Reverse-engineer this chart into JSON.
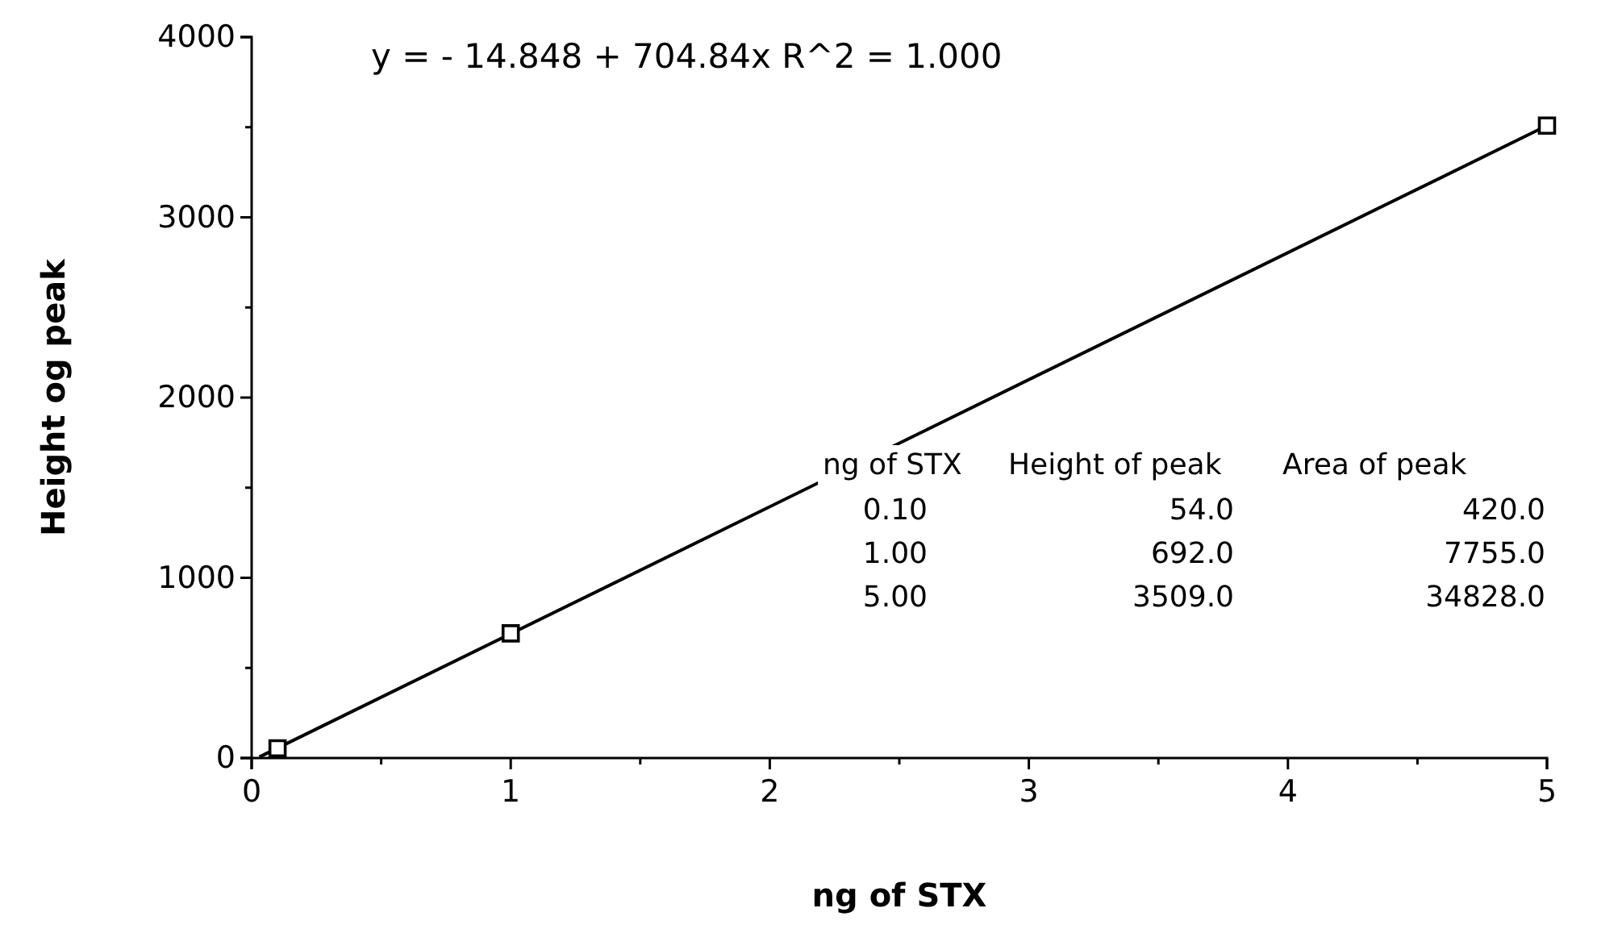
{
  "chart_data": {
    "type": "scatter",
    "xlabel": "ng of STX",
    "ylabel": "Height og peak",
    "xlim": [
      0,
      5
    ],
    "xticks": [
      0,
      1,
      2,
      3,
      4,
      5
    ],
    "ylim": [
      0,
      4000
    ],
    "yticks": [
      0,
      1000,
      2000,
      3000,
      4000
    ],
    "grid": false,
    "series": [
      {
        "color": "#000000",
        "marker": "square",
        "x": [
          0.1,
          1,
          5
        ],
        "values": [
          54,
          692,
          3509
        ]
      },
      {
        "type": "line",
        "color": "#000000",
        "x": [
          0.03,
          5
        ],
        "values": [
          6,
          3509
        ]
      }
    ],
    "annotations": [
      "y =  - 14.848 + 704.84x   R^2 = 1.000",
      "ng of STX",
      "Height of peak",
      "Area of peak",
      "0.10",
      "54.0",
      "420.0",
      "1.00",
      "692.0",
      "7755.0",
      "5.00",
      "3509.0",
      "34828.0"
    ]
  }
}
